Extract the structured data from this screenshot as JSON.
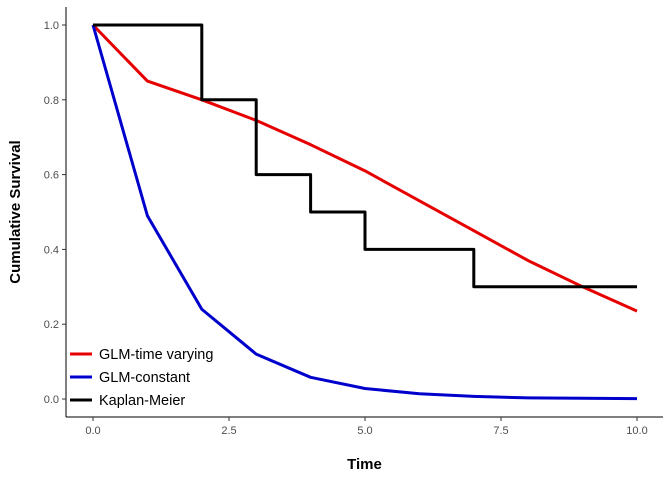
{
  "chart_data": {
    "type": "line",
    "xlabel": "Time",
    "ylabel": "Cumulative Survival",
    "xlim": [
      0,
      10
    ],
    "ylim": [
      0,
      1
    ],
    "x_ticks": [
      0,
      2.5,
      5,
      7.5,
      10
    ],
    "x_tick_labels": [
      "0.0",
      "2.5",
      "5.0",
      "7.5",
      "10.0"
    ],
    "y_ticks": [
      0,
      0.2,
      0.4,
      0.6,
      0.8,
      1.0
    ],
    "y_tick_labels": [
      "0.0",
      "0.2",
      "0.4",
      "0.6",
      "0.8",
      "1.0"
    ],
    "grid": false,
    "legend_position": "bottom-left",
    "series": [
      {
        "name": "GLM-time varying",
        "color": "#e60000",
        "style": "line",
        "x": [
          0,
          1,
          2,
          3,
          4,
          5,
          6,
          7,
          8,
          9,
          10
        ],
        "y": [
          1.0,
          0.85,
          0.8,
          0.745,
          0.68,
          0.61,
          0.53,
          0.45,
          0.37,
          0.3,
          0.235
        ]
      },
      {
        "name": "GLM-constant",
        "color": "#0000cc",
        "style": "line",
        "x": [
          0,
          1,
          2,
          3,
          4,
          5,
          6,
          7,
          8,
          9,
          10
        ],
        "y": [
          1.0,
          0.49,
          0.24,
          0.12,
          0.058,
          0.028,
          0.014,
          0.007,
          0.003,
          0.002,
          0.001
        ]
      },
      {
        "name": "Kaplan-Meier",
        "color": "#000000",
        "style": "step",
        "x": [
          0,
          2,
          3,
          4,
          5,
          7,
          10
        ],
        "y": [
          1.0,
          0.8,
          0.6,
          0.5,
          0.4,
          0.3,
          0.3
        ]
      }
    ]
  }
}
